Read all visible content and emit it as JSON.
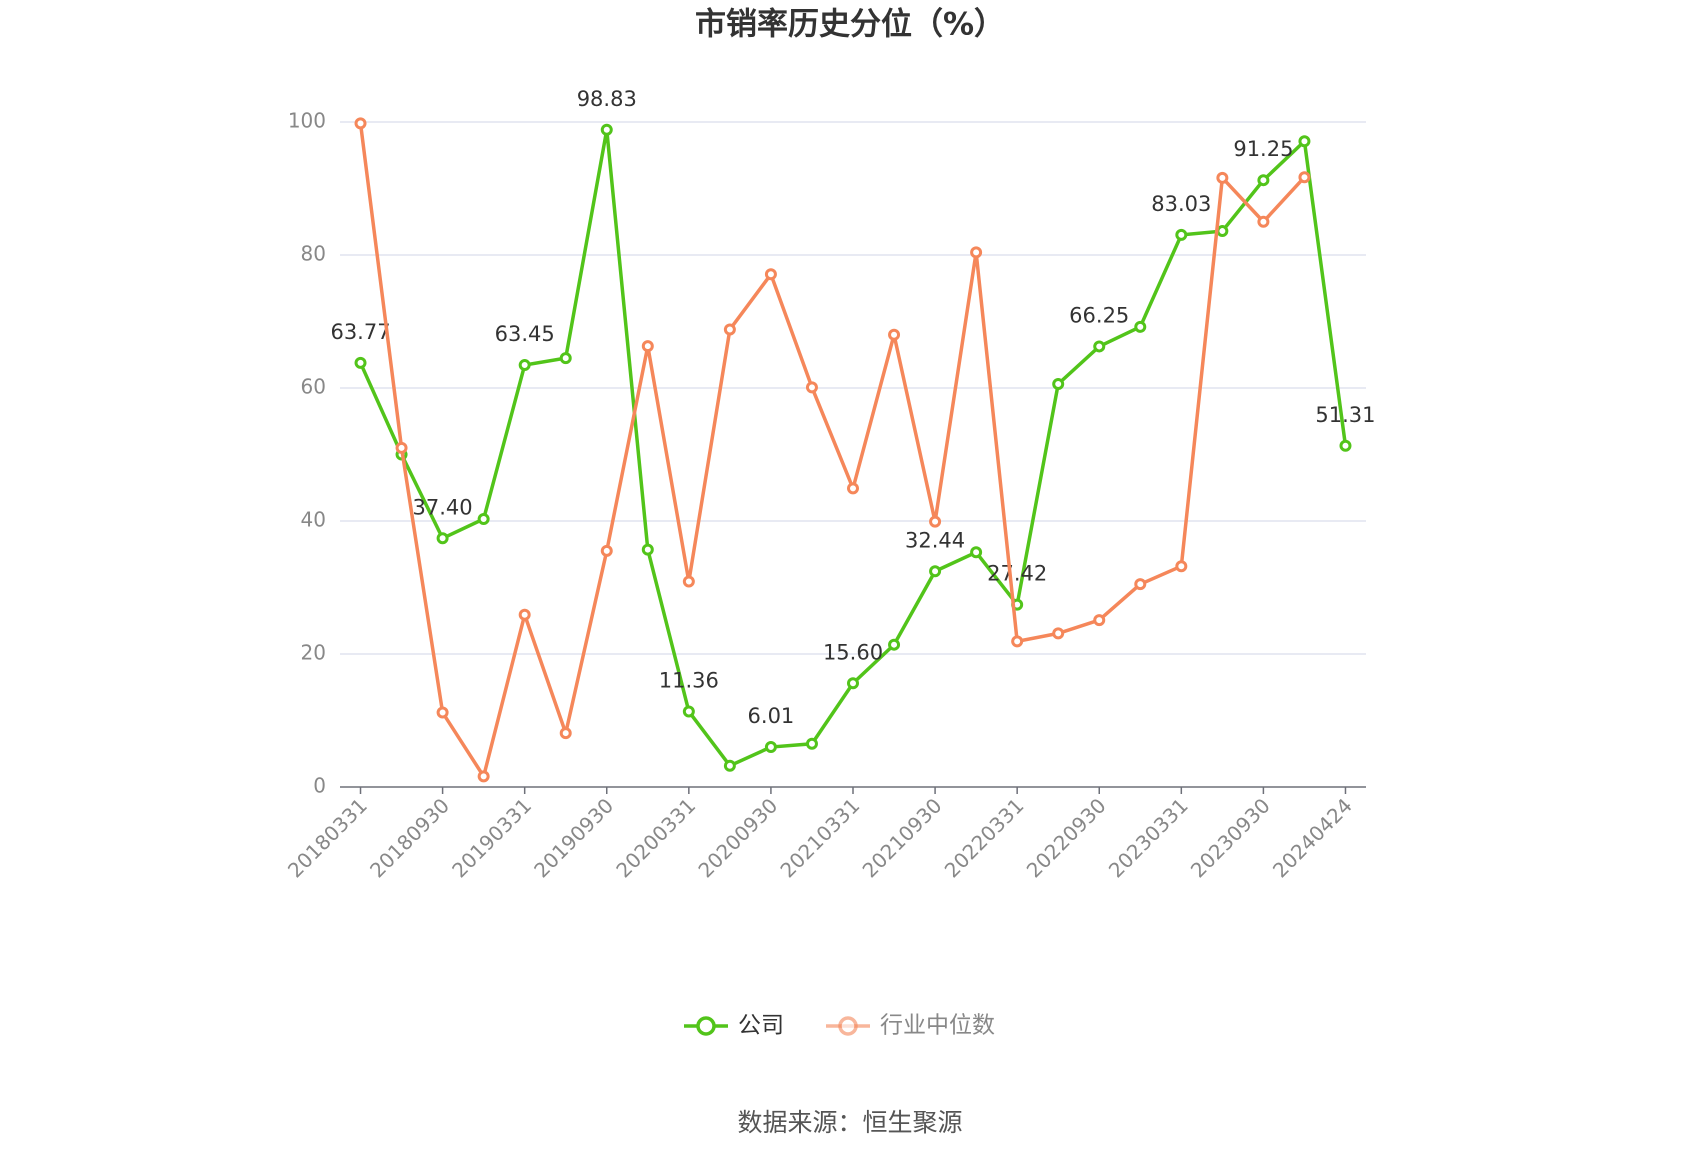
{
  "chart_data": {
    "type": "line",
    "title": "市销率历史分位（%）",
    "categories": [
      "20180331",
      null,
      "20180930",
      null,
      "20190331",
      null,
      "20190930",
      null,
      "20200331",
      null,
      "20200930",
      null,
      "20210331",
      null,
      "20210930",
      null,
      "20220331",
      null,
      "20220930",
      null,
      "20230331",
      null,
      "20230930",
      null,
      "20240424"
    ],
    "series": [
      {
        "name": "公司",
        "color": "#52c41a",
        "values": [
          63.77,
          50.0,
          37.4,
          40.3,
          63.45,
          64.5,
          98.83,
          35.7,
          11.36,
          3.2,
          6.01,
          6.5,
          15.6,
          21.4,
          32.44,
          35.3,
          27.42,
          60.6,
          66.25,
          69.2,
          83.03,
          83.6,
          91.25,
          97.1,
          51.31
        ],
        "value_labels": [
          "63.77",
          null,
          "37.40",
          null,
          "63.45",
          null,
          "98.83",
          null,
          "11.36",
          null,
          "6.01",
          null,
          "15.60",
          null,
          "32.44",
          null,
          "27.42",
          null,
          "66.25",
          null,
          "83.03",
          null,
          "91.25",
          null,
          "51.31"
        ]
      },
      {
        "name": "行业中位数",
        "color": "#f5875a",
        "values": [
          99.8,
          51.0,
          11.2,
          1.6,
          25.9,
          8.1,
          35.5,
          66.3,
          30.9,
          68.8,
          77.1,
          60.1,
          44.9,
          68.0,
          39.9,
          80.4,
          21.9,
          23.1,
          25.1,
          30.5,
          33.2,
          91.6,
          85.0,
          91.7,
          null
        ]
      }
    ],
    "ylim": [
      0,
      100
    ],
    "yticks": [
      0,
      20,
      40,
      60,
      80,
      100
    ],
    "grid": true,
    "legend": "bottom",
    "source": "数据来源：恒生聚源"
  }
}
